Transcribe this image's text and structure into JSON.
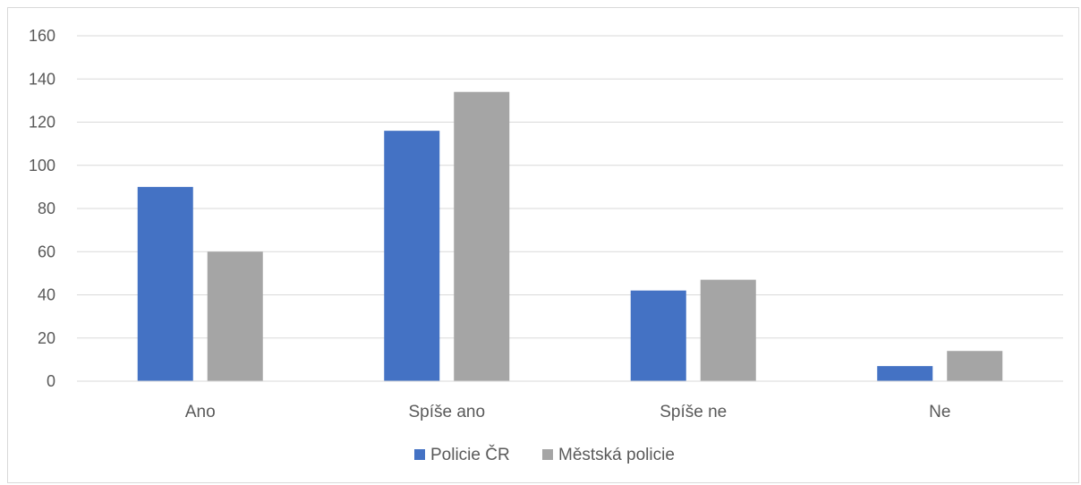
{
  "chart_data": {
    "type": "bar",
    "title": "",
    "xlabel": "",
    "ylabel": "",
    "categories": [
      "Ano",
      "Spíše ano",
      "Spíše ne",
      "Ne"
    ],
    "series": [
      {
        "name": "Policie ČR",
        "color": "#4472C4",
        "values": [
          90,
          116,
          42,
          7
        ]
      },
      {
        "name": "Městská policie",
        "color": "#A5A5A5",
        "values": [
          60,
          134,
          47,
          14
        ]
      }
    ],
    "ylim": [
      0,
      160
    ],
    "yticks": [
      0,
      20,
      40,
      60,
      80,
      100,
      120,
      140,
      160
    ],
    "ytick_labels": [
      "0",
      "20",
      "40",
      "60",
      "80",
      "100",
      "120",
      "140",
      "160"
    ],
    "grid": true,
    "legend_position": "bottom"
  }
}
